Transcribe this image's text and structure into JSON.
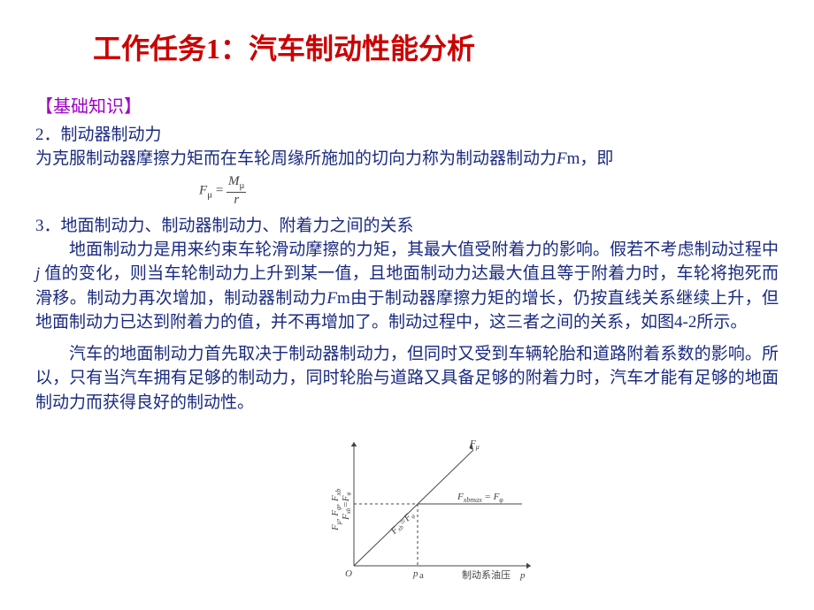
{
  "title": "工作任务1：汽车制动性能分析",
  "section_label": "【基础知识】",
  "sub2_head": "2．制动器制动力",
  "sub2_line1a": "为克服制动器摩擦力矩而在车轮周缘所施加的切向力称为制动器制动力",
  "sub2_line1b": "m，即",
  "fm": "F",
  "formula": {
    "lhs_base": "F",
    "lhs_sub": "μ",
    "eq": " = ",
    "num_base": "M",
    "num_sub": "μ",
    "den": "r"
  },
  "sub3_head": "3．地面制动力、制动器制动力、附着力之间的关系",
  "p3a": "地面制动力是用来约束车轮滑动摩擦的力矩，其最大值受附着力的影响。假若不考虑制动过程中",
  "p3b": " 值的变化，则当车轮制动力上升到某一值，且地面制动力达最大值且等于附着力时，车轮将抱死而滑移。制动力再次增加，制动器制动力",
  "p3c": "m由于制动器摩擦力矩的增长，仍按直线关系继续上升，但地面制动力已达到附着力的值，并不再增加了。制动过程中，这三者之间的关系，如图4-2所示。",
  "jvar": "j",
  "p4": "汽车的地面制动力首先取决于制动器制动力，但同时又受到车辆轮胎和道路附着系数的影响。所以，只有当汽车拥有足够的制动力，同时轮胎与道路又具备足够的附着力时，汽车才能有足够的地面制动力而获得良好的制动性。",
  "chart": {
    "type": "line",
    "background_color": "#ffffff",
    "axis_color": "#444444",
    "line_color": "#444444",
    "dashed_color": "#444444",
    "origin_label": "O",
    "xaxis_label_cn": "制动系油压",
    "xaxis_label_var": "p",
    "yaxis_label": "F_μ, F_φ, F_xb",
    "x_tick": "p_a",
    "diag_label": "F_μ",
    "horiz_seg_label": "F_xbmax = F_φ",
    "diag_lower_label": "F_xb = F_φ",
    "y_break_label": "F_xb = F_φ",
    "xlim": [
      0,
      200
    ],
    "ylim": [
      0,
      140
    ],
    "p_a": 72,
    "y_break": 70,
    "diag_slope": 0.97,
    "arrow_size": 5,
    "line_width": 1,
    "dash": "3,3"
  }
}
